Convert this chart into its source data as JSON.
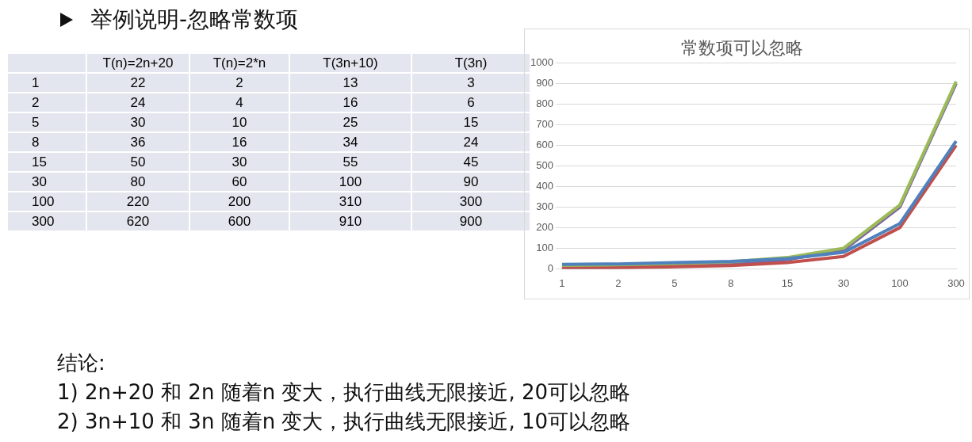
{
  "chart_data": [
    {
      "type": "other",
      "categories": [
        "T(n)=2n+20",
        "T(n)=2*n",
        "T(3n+10)",
        "T(3n)"
      ],
      "series": [
        {
          "name": "1",
          "values": [
            22,
            2,
            13,
            3
          ]
        },
        {
          "name": "2",
          "values": [
            24,
            4,
            16,
            6
          ]
        },
        {
          "name": "5",
          "values": [
            30,
            10,
            25,
            15
          ]
        },
        {
          "name": "8",
          "values": [
            36,
            16,
            34,
            24
          ]
        },
        {
          "name": "15",
          "values": [
            50,
            30,
            55,
            45
          ]
        },
        {
          "name": "30",
          "values": [
            80,
            60,
            100,
            90
          ]
        },
        {
          "name": "100",
          "values": [
            220,
            200,
            310,
            300
          ]
        },
        {
          "name": "300",
          "values": [
            620,
            600,
            910,
            900
          ]
        }
      ],
      "data_labels": true,
      "annotations": [
        "举例说明-忽略常数项",
        "结论:",
        "1)   2n+20 和 2n 随着n 变大，执行曲线无限接近, 20可以忽略",
        "2)   3n+10 和 3n 随着n 变大，执行曲线无限接近, 10可以忽略"
      ]
    },
    {
      "type": "line",
      "title": "常数项可以忽略",
      "categories": [
        "1",
        "2",
        "5",
        "8",
        "15",
        "30",
        "100",
        "300"
      ],
      "series": [
        {
          "color": "#4f81bd",
          "values": [
            22,
            24,
            30,
            36,
            50,
            80,
            220,
            620
          ]
        },
        {
          "color": "#c0504d",
          "values": [
            2,
            4,
            10,
            16,
            30,
            60,
            200,
            600
          ]
        },
        {
          "color": "#9bbb59",
          "values": [
            13,
            16,
            25,
            34,
            55,
            100,
            310,
            910
          ]
        },
        {
          "color": "#8064a2",
          "values": [
            3,
            6,
            15,
            24,
            45,
            90,
            300,
            900
          ]
        }
      ],
      "ylim": [
        0,
        1000
      ],
      "yticks": [
        0,
        100,
        200,
        300,
        400,
        500,
        600,
        700,
        800,
        900,
        1000
      ],
      "grid": "y",
      "legend": false,
      "marker": "none",
      "line_style": "solid"
    }
  ]
}
